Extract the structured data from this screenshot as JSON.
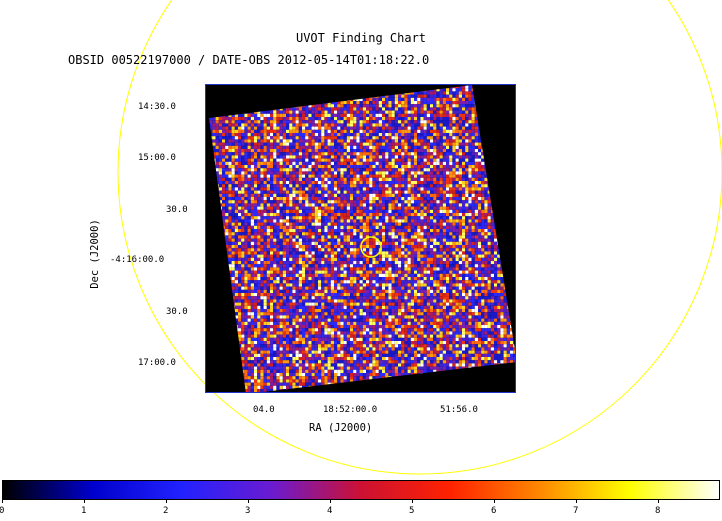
{
  "header": {
    "title": "UVOT Finding Chart",
    "subtitle": "OBSID 00522197000 / DATE-OBS 2012-05-14T01:18:22.0"
  },
  "axes": {
    "dec_label": "Dec (J2000)",
    "ra_label": "RA (J2000)",
    "dec_ticks": [
      "14:30.0",
      "15:00.0",
      "30.0",
      "-4:16:00.0",
      "30.0",
      "17:00.0"
    ],
    "ra_ticks": [
      "04.0",
      "18:52:00.0",
      "51:56.0"
    ]
  },
  "colorbar": {
    "ticks": [
      "0",
      "1",
      "2",
      "3",
      "4",
      "5",
      "6",
      "7",
      "8"
    ],
    "colors": [
      "#000000",
      "#0000cc",
      "#2222ff",
      "#6a1bd0",
      "#cc1133",
      "#ff2200",
      "#ff8800",
      "#ffff00",
      "#ffffff"
    ]
  },
  "colors": {
    "overlay_circle": "#ffff00",
    "frame": "#2233cc"
  }
}
